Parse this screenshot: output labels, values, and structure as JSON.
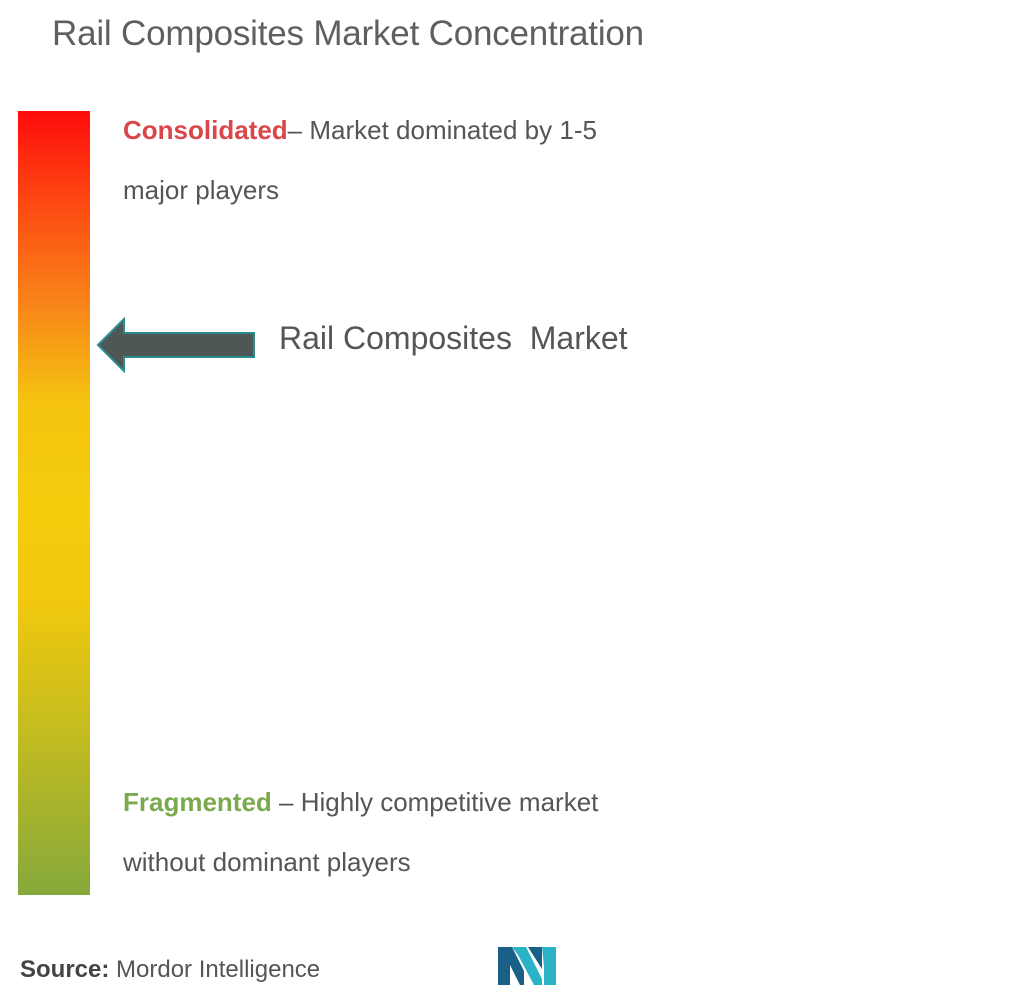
{
  "title": "Rail Composites Market Concentration",
  "scale": {
    "consolidated": {
      "label": "Consolidated",
      "description": "– Market dominated by 1-5",
      "description_line2": "major players",
      "color": "#d9474a"
    },
    "fragmented": {
      "label": "Fragmented",
      "description": " – Highly competitive market",
      "description_line2": "without dominant players",
      "color": "#7aaa4c"
    },
    "gradient_colors": [
      "#fe0b0b",
      "#f9861a",
      "#f3cc0c",
      "#86a93c"
    ]
  },
  "marker": {
    "label": "Rail Composites  Market",
    "icon": "left-arrow-icon",
    "arrow_color": "#4f5656",
    "arrow_outline": "#2a8c8c"
  },
  "source": {
    "label": "Source:",
    "value": " Mordor Intelligence"
  },
  "logo": {
    "icon": "mordor-intelligence-logo",
    "colors": [
      "#1a5f86",
      "#2ab3c7"
    ]
  }
}
